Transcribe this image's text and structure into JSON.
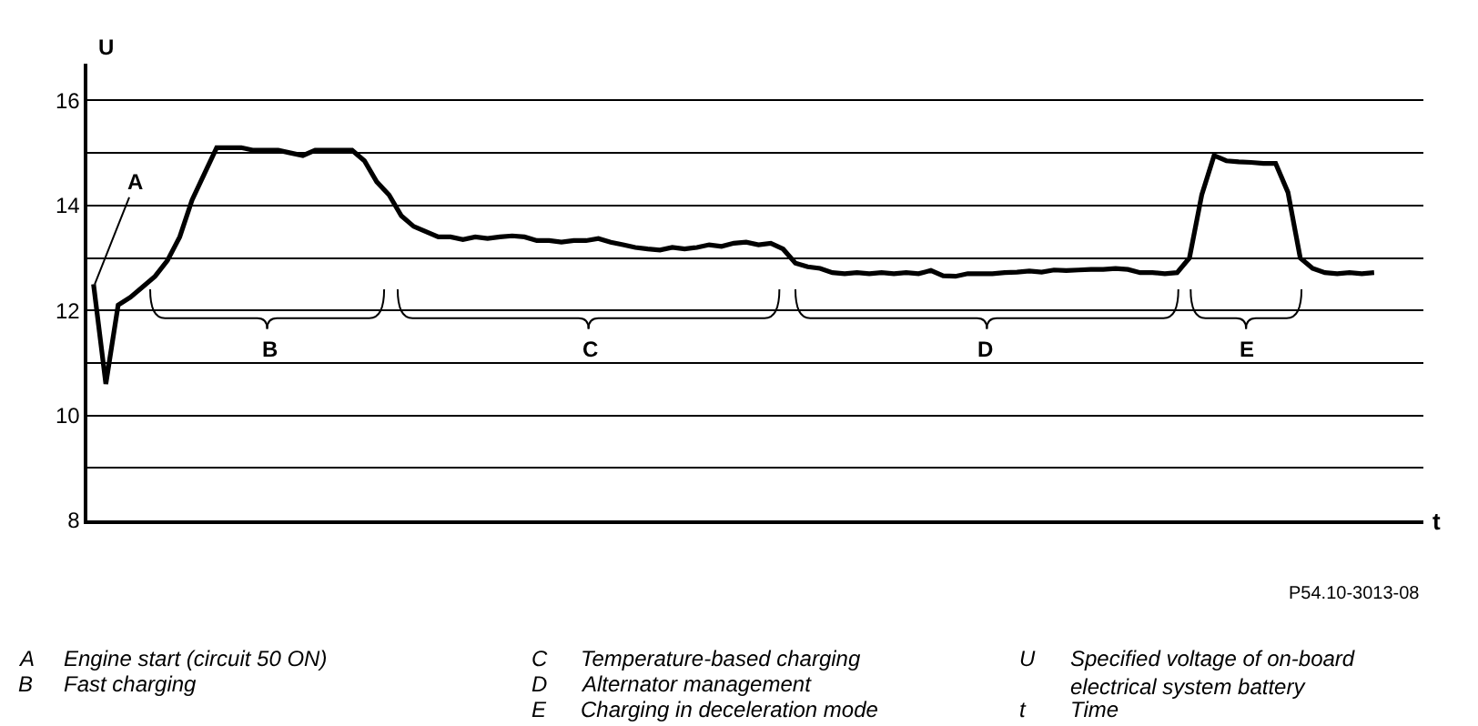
{
  "chart_data": {
    "type": "line",
    "xlabel": "t",
    "ylabel": "U",
    "categories": [
      null,
      null,
      null,
      null,
      null,
      null,
      null,
      null,
      null,
      null,
      null,
      null,
      null,
      null,
      null,
      null,
      null,
      null,
      null,
      null,
      null,
      null,
      null,
      null,
      null,
      null,
      null,
      null,
      null,
      null,
      null,
      null,
      null,
      null,
      null,
      null,
      null,
      null,
      null,
      null,
      null,
      null,
      null,
      null,
      null,
      null,
      null,
      null,
      null,
      null,
      null,
      null,
      null,
      null,
      null,
      null,
      null,
      null,
      null,
      null,
      null,
      null,
      null,
      null,
      null,
      null,
      null,
      null,
      null,
      null,
      null,
      null,
      null,
      null,
      null,
      null,
      null,
      null,
      null,
      null,
      null,
      null,
      null,
      null,
      null,
      null,
      null,
      null,
      null,
      null,
      null,
      null,
      null,
      null,
      null,
      null,
      null,
      null,
      null,
      null,
      null,
      null,
      null,
      null,
      null
    ],
    "series": [
      {
        "color": "#000000",
        "values": [
          12.5,
          10.6,
          12.1,
          12.25,
          12.45,
          12.65,
          12.95,
          13.4,
          14.1,
          14.6,
          15.1,
          15.1,
          15.1,
          15.05,
          15.05,
          15.05,
          15.0,
          14.95,
          15.05,
          15.05,
          15.05,
          15.05,
          14.85,
          14.45,
          14.2,
          13.8,
          13.6,
          13.5,
          13.4,
          13.4,
          13.35,
          13.4,
          13.37,
          13.4,
          13.42,
          13.4,
          13.33,
          13.33,
          13.3,
          13.33,
          13.33,
          13.37,
          13.3,
          13.25,
          13.2,
          13.17,
          13.15,
          13.2,
          13.17,
          13.2,
          13.25,
          13.22,
          13.28,
          13.3,
          13.25,
          13.28,
          13.17,
          12.9,
          12.83,
          12.8,
          12.72,
          12.7,
          12.72,
          12.7,
          12.72,
          12.7,
          12.72,
          12.7,
          12.76,
          12.66,
          12.65,
          12.7,
          12.7,
          12.7,
          12.72,
          12.73,
          12.75,
          12.73,
          12.77,
          12.76,
          12.77,
          12.78,
          12.78,
          12.8,
          12.78,
          12.72,
          12.72,
          12.7,
          12.72,
          13.0,
          14.2,
          14.95,
          14.85,
          14.83,
          14.82,
          14.8,
          14.8,
          14.25,
          13.0,
          12.8,
          12.72,
          12.7,
          12.72,
          12.7,
          12.72
        ]
      }
    ],
    "ylim": [
      8,
      16.7
    ],
    "yticks": [
      8,
      {
        "value": 9,
        "label": null
      },
      10,
      {
        "value": 11,
        "label": null
      },
      12,
      {
        "value": 13,
        "label": null
      },
      14,
      {
        "value": 15,
        "label": null
      },
      16
    ],
    "grid": "y",
    "marker": "none",
    "line_style": "solid",
    "annotations": [
      "A",
      "B",
      "C",
      "D",
      "E",
      "P54.10-3013-08",
      "A Engine start (circuit 50 ON)",
      "B Fast charging",
      "C Temperature-based charging",
      "D Alternator management",
      "E Charging in deceleration mode",
      "U Specified voltage of on-board electrical system battery",
      "t Time"
    ]
  }
}
